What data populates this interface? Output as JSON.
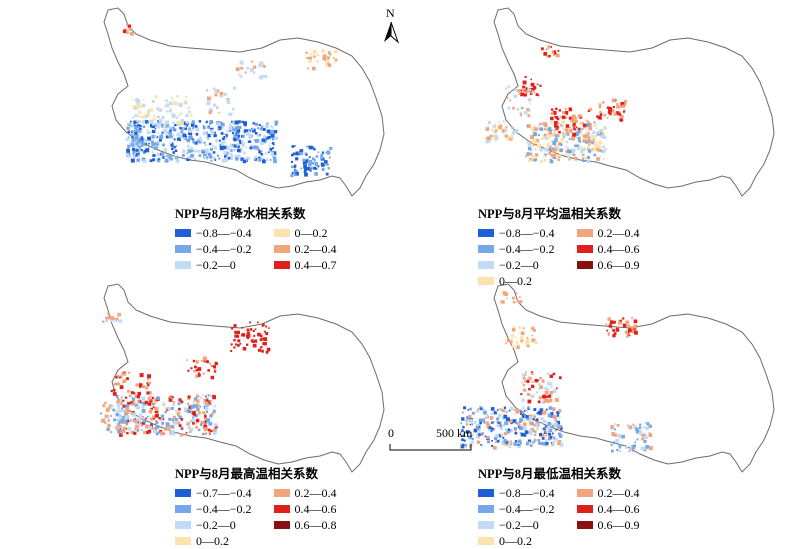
{
  "north_label": "N",
  "scalebar": {
    "start": "0",
    "end": "500 km"
  },
  "panels": [
    {
      "title": "NPP与8月降水相关系数",
      "legend_cols": [
        [
          {
            "label": "−0.8—−0.4",
            "color": "#1f5fd6"
          },
          {
            "label": "−0.4—−0.2",
            "color": "#76a7e8"
          },
          {
            "label": "−0.2—0",
            "color": "#c2dbf4"
          }
        ],
        [
          {
            "label": "0—0.2",
            "color": "#fbe3ad"
          },
          {
            "label": "0.2—0.4",
            "color": "#f2a57d"
          },
          {
            "label": "0.4—0.7",
            "color": "#e0201a"
          }
        ]
      ]
    },
    {
      "title": "NPP与8月平均温相关系数",
      "legend_cols": [
        [
          {
            "label": "−0.8—−0.4",
            "color": "#1f5fd6"
          },
          {
            "label": "−0.4—−0.2",
            "color": "#76a7e8"
          },
          {
            "label": "−0.2—0",
            "color": "#c2dbf4"
          },
          {
            "label": "0—0.2",
            "color": "#fbe3ad"
          }
        ],
        [
          {
            "label": "0.2—0.4",
            "color": "#f2a57d"
          },
          {
            "label": "0.4—0.6",
            "color": "#e0201a"
          },
          {
            "label": "0.6—0.9",
            "color": "#8a0f10"
          }
        ]
      ]
    },
    {
      "title": "NPP与8月最高温相关系数",
      "legend_cols": [
        [
          {
            "label": "−0.7—−0.4",
            "color": "#1f5fd6"
          },
          {
            "label": "−0.4—−0.2",
            "color": "#76a7e8"
          },
          {
            "label": "−0.2—0",
            "color": "#c2dbf4"
          },
          {
            "label": "0—0.2",
            "color": "#fbe3ad"
          }
        ],
        [
          {
            "label": "0.2—0.4",
            "color": "#f2a57d"
          },
          {
            "label": "0.4—0.6",
            "color": "#e0201a"
          },
          {
            "label": "0.6—0.8",
            "color": "#8a0f10"
          }
        ]
      ]
    },
    {
      "title": "NPP与8月最低温相关系数",
      "legend_cols": [
        [
          {
            "label": "−0.8—−0.4",
            "color": "#1f5fd6"
          },
          {
            "label": "−0.4—−0.2",
            "color": "#76a7e8"
          },
          {
            "label": "−0.2—0",
            "color": "#c2dbf4"
          },
          {
            "label": "0—0.2",
            "color": "#fbe3ad"
          }
        ],
        [
          {
            "label": "0.2—0.4",
            "color": "#f2a57d"
          },
          {
            "label": "0.4—0.6",
            "color": "#e0201a"
          },
          {
            "label": "0.6—0.9",
            "color": "#8a0f10"
          }
        ]
      ]
    }
  ]
}
